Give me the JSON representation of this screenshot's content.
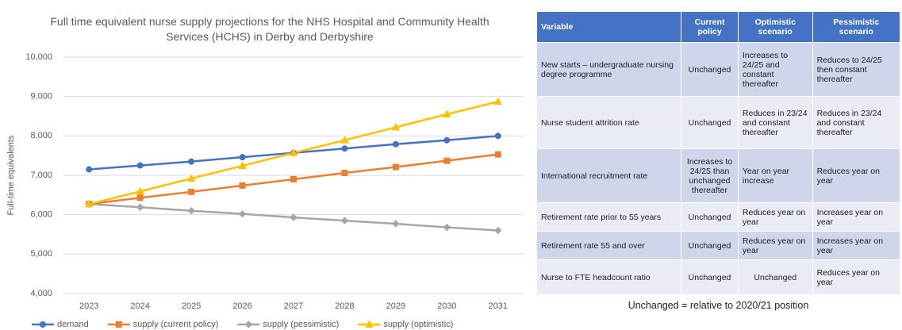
{
  "chart_data": {
    "type": "line",
    "title": "Full time equivalent nurse supply projections for the NHS Hospital and Community Health Services (HCHS) in Derby and Derbyshire",
    "y_label": "Full-time equivalents",
    "categories": [
      "2023",
      "2024",
      "2025",
      "2026",
      "2027",
      "2028",
      "2029",
      "2030",
      "2031"
    ],
    "series": [
      {
        "name": "demand",
        "color": "#4472c4",
        "marker": "circle",
        "values": [
          7150,
          7250,
          7350,
          7460,
          7570,
          7680,
          7790,
          7890,
          8000
        ]
      },
      {
        "name": "supply (current policy)",
        "color": "#ed7d31",
        "marker": "square",
        "values": [
          6270,
          6430,
          6580,
          6740,
          6900,
          7060,
          7210,
          7370,
          7530
        ]
      },
      {
        "name": "supply (pessimistic)",
        "color": "#a5a5a5",
        "marker": "diamond",
        "values": [
          6270,
          6190,
          6100,
          6020,
          5930,
          5850,
          5770,
          5680,
          5600
        ]
      },
      {
        "name": "supply (optimistic)",
        "color": "#ffc000",
        "marker": "triangle",
        "values": [
          6270,
          6590,
          6920,
          7240,
          7570,
          7890,
          8220,
          8550,
          8870
        ]
      }
    ],
    "ylim": [
      4000,
      10000
    ],
    "yticks": [
      {
        "value": 4000,
        "label": "4,000"
      },
      {
        "value": 5000,
        "label": "5,000"
      },
      {
        "value": 6000,
        "label": "6,000"
      },
      {
        "value": 7000,
        "label": "7,000"
      },
      {
        "value": 8000,
        "label": "8,000"
      },
      {
        "value": 9000,
        "label": "9,000"
      },
      {
        "value": 10000,
        "label": "10,000"
      }
    ],
    "grid": true,
    "legend": "bottom"
  },
  "table": {
    "header": [
      "Variable",
      "Current policy",
      "Optimistic scenario",
      "Pessimistic scenario"
    ],
    "rows": [
      [
        "New starts – undergraduate nursing degree programme",
        "Unchanged",
        "Increases to 24/25 and constant thereafter",
        "Reduces to 24/25 then constant thereafter"
      ],
      [
        "Nurse student attrition rate",
        "Unchanged",
        "Reduces in 23/24 and constant thereafter",
        "Reduces in 23/24 and constant thereafter"
      ],
      [
        "International recruitment rate",
        "Increases to 24/25 than unchanged thereafter",
        "Year on year increase",
        "Reduces year on year"
      ],
      [
        "Retirement rate prior to 55 years",
        "Unchanged",
        "Reduces year on year",
        "Increases year on year"
      ],
      [
        "Retirement rate 55 and over",
        "Unchanged",
        "Reduces year on year",
        "Increases year on year"
      ],
      [
        "Nurse to FTE headcount ratio",
        "Unchanged",
        "Unchanged",
        "Reduces year on year"
      ]
    ]
  },
  "footnote": "Unchanged = relative to 2020/21 position"
}
